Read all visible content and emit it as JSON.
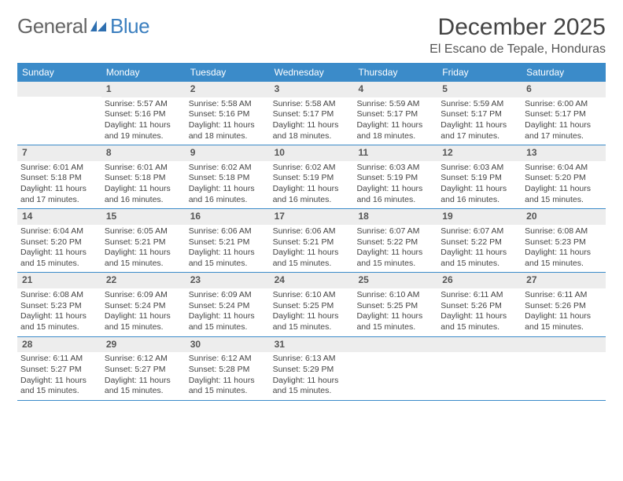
{
  "logo": {
    "part1": "General",
    "part2": "Blue"
  },
  "title": "December 2025",
  "location": "El Escano de Tepale, Honduras",
  "colors": {
    "header_bg": "#3b8bc9",
    "header_text": "#ffffff",
    "daynum_bg": "#ededed",
    "rule": "#3b8bc9",
    "body_text": "#444444"
  },
  "weekdays": [
    "Sunday",
    "Monday",
    "Tuesday",
    "Wednesday",
    "Thursday",
    "Friday",
    "Saturday"
  ],
  "weeks": [
    [
      {
        "n": "",
        "sr": "",
        "ss": "",
        "dl": ""
      },
      {
        "n": "1",
        "sr": "Sunrise: 5:57 AM",
        "ss": "Sunset: 5:16 PM",
        "dl": "Daylight: 11 hours and 19 minutes."
      },
      {
        "n": "2",
        "sr": "Sunrise: 5:58 AM",
        "ss": "Sunset: 5:16 PM",
        "dl": "Daylight: 11 hours and 18 minutes."
      },
      {
        "n": "3",
        "sr": "Sunrise: 5:58 AM",
        "ss": "Sunset: 5:17 PM",
        "dl": "Daylight: 11 hours and 18 minutes."
      },
      {
        "n": "4",
        "sr": "Sunrise: 5:59 AM",
        "ss": "Sunset: 5:17 PM",
        "dl": "Daylight: 11 hours and 18 minutes."
      },
      {
        "n": "5",
        "sr": "Sunrise: 5:59 AM",
        "ss": "Sunset: 5:17 PM",
        "dl": "Daylight: 11 hours and 17 minutes."
      },
      {
        "n": "6",
        "sr": "Sunrise: 6:00 AM",
        "ss": "Sunset: 5:17 PM",
        "dl": "Daylight: 11 hours and 17 minutes."
      }
    ],
    [
      {
        "n": "7",
        "sr": "Sunrise: 6:01 AM",
        "ss": "Sunset: 5:18 PM",
        "dl": "Daylight: 11 hours and 17 minutes."
      },
      {
        "n": "8",
        "sr": "Sunrise: 6:01 AM",
        "ss": "Sunset: 5:18 PM",
        "dl": "Daylight: 11 hours and 16 minutes."
      },
      {
        "n": "9",
        "sr": "Sunrise: 6:02 AM",
        "ss": "Sunset: 5:18 PM",
        "dl": "Daylight: 11 hours and 16 minutes."
      },
      {
        "n": "10",
        "sr": "Sunrise: 6:02 AM",
        "ss": "Sunset: 5:19 PM",
        "dl": "Daylight: 11 hours and 16 minutes."
      },
      {
        "n": "11",
        "sr": "Sunrise: 6:03 AM",
        "ss": "Sunset: 5:19 PM",
        "dl": "Daylight: 11 hours and 16 minutes."
      },
      {
        "n": "12",
        "sr": "Sunrise: 6:03 AM",
        "ss": "Sunset: 5:19 PM",
        "dl": "Daylight: 11 hours and 16 minutes."
      },
      {
        "n": "13",
        "sr": "Sunrise: 6:04 AM",
        "ss": "Sunset: 5:20 PM",
        "dl": "Daylight: 11 hours and 15 minutes."
      }
    ],
    [
      {
        "n": "14",
        "sr": "Sunrise: 6:04 AM",
        "ss": "Sunset: 5:20 PM",
        "dl": "Daylight: 11 hours and 15 minutes."
      },
      {
        "n": "15",
        "sr": "Sunrise: 6:05 AM",
        "ss": "Sunset: 5:21 PM",
        "dl": "Daylight: 11 hours and 15 minutes."
      },
      {
        "n": "16",
        "sr": "Sunrise: 6:06 AM",
        "ss": "Sunset: 5:21 PM",
        "dl": "Daylight: 11 hours and 15 minutes."
      },
      {
        "n": "17",
        "sr": "Sunrise: 6:06 AM",
        "ss": "Sunset: 5:21 PM",
        "dl": "Daylight: 11 hours and 15 minutes."
      },
      {
        "n": "18",
        "sr": "Sunrise: 6:07 AM",
        "ss": "Sunset: 5:22 PM",
        "dl": "Daylight: 11 hours and 15 minutes."
      },
      {
        "n": "19",
        "sr": "Sunrise: 6:07 AM",
        "ss": "Sunset: 5:22 PM",
        "dl": "Daylight: 11 hours and 15 minutes."
      },
      {
        "n": "20",
        "sr": "Sunrise: 6:08 AM",
        "ss": "Sunset: 5:23 PM",
        "dl": "Daylight: 11 hours and 15 minutes."
      }
    ],
    [
      {
        "n": "21",
        "sr": "Sunrise: 6:08 AM",
        "ss": "Sunset: 5:23 PM",
        "dl": "Daylight: 11 hours and 15 minutes."
      },
      {
        "n": "22",
        "sr": "Sunrise: 6:09 AM",
        "ss": "Sunset: 5:24 PM",
        "dl": "Daylight: 11 hours and 15 minutes."
      },
      {
        "n": "23",
        "sr": "Sunrise: 6:09 AM",
        "ss": "Sunset: 5:24 PM",
        "dl": "Daylight: 11 hours and 15 minutes."
      },
      {
        "n": "24",
        "sr": "Sunrise: 6:10 AM",
        "ss": "Sunset: 5:25 PM",
        "dl": "Daylight: 11 hours and 15 minutes."
      },
      {
        "n": "25",
        "sr": "Sunrise: 6:10 AM",
        "ss": "Sunset: 5:25 PM",
        "dl": "Daylight: 11 hours and 15 minutes."
      },
      {
        "n": "26",
        "sr": "Sunrise: 6:11 AM",
        "ss": "Sunset: 5:26 PM",
        "dl": "Daylight: 11 hours and 15 minutes."
      },
      {
        "n": "27",
        "sr": "Sunrise: 6:11 AM",
        "ss": "Sunset: 5:26 PM",
        "dl": "Daylight: 11 hours and 15 minutes."
      }
    ],
    [
      {
        "n": "28",
        "sr": "Sunrise: 6:11 AM",
        "ss": "Sunset: 5:27 PM",
        "dl": "Daylight: 11 hours and 15 minutes."
      },
      {
        "n": "29",
        "sr": "Sunrise: 6:12 AM",
        "ss": "Sunset: 5:27 PM",
        "dl": "Daylight: 11 hours and 15 minutes."
      },
      {
        "n": "30",
        "sr": "Sunrise: 6:12 AM",
        "ss": "Sunset: 5:28 PM",
        "dl": "Daylight: 11 hours and 15 minutes."
      },
      {
        "n": "31",
        "sr": "Sunrise: 6:13 AM",
        "ss": "Sunset: 5:29 PM",
        "dl": "Daylight: 11 hours and 15 minutes."
      },
      {
        "n": "",
        "sr": "",
        "ss": "",
        "dl": ""
      },
      {
        "n": "",
        "sr": "",
        "ss": "",
        "dl": ""
      },
      {
        "n": "",
        "sr": "",
        "ss": "",
        "dl": ""
      }
    ]
  ]
}
